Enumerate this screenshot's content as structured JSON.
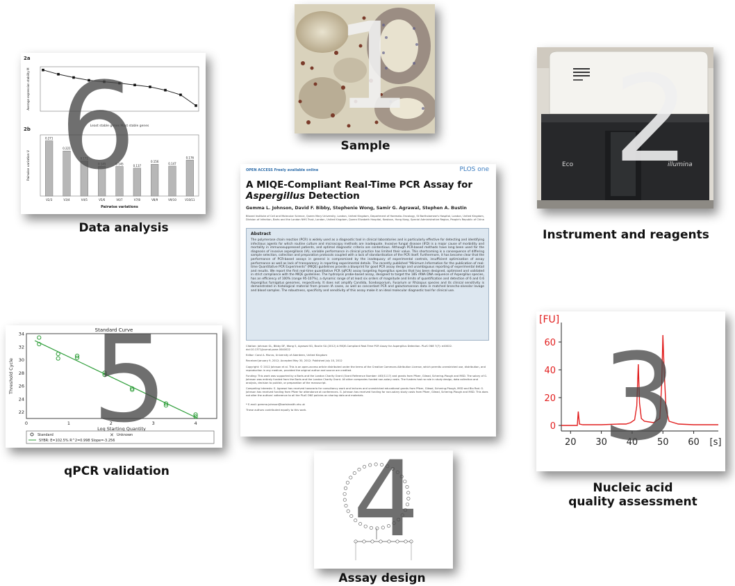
{
  "captions": {
    "sample": "Sample",
    "instrument": "Instrument and reagents",
    "quality_line1": "Nucleic acid",
    "quality_line2": "quality assessment",
    "assay": "Assay design",
    "validation": "qPCR validation",
    "analysis": "Data analysis"
  },
  "step_numbers": [
    "1",
    "2",
    "3",
    "4",
    "5",
    "6"
  ],
  "paper": {
    "open_access": "OPEN ACCESS Freely available online",
    "journal": "PLOS one",
    "title_start": "A MIQE-Compliant Real-Time PCR Assay for ",
    "title_italic": "Aspergillus",
    "title_end": " Detection",
    "authors": "Gemma L. Johnson, David F. Bibby, Stephenie Wong, Samir G. Agrawal, Stephen A. Bustin",
    "affiliations": "Blizard Institute of Cell and Molecular Science, Queen Mary University, London, United Kingdom, Department of Haemato-Oncology, St Bartholomew's Hospital, London, United Kingdom, Division of Infection, Barts and the London NHS Trust, London, United Kingdom, Queen Elizabeth Hospital, Kowloon, Hong Kong, Special Administrative Region, People's Republic of China",
    "abstract_heading": "Abstract",
    "abstract_text": "The polymerase chain reaction (PCR) is widely used as a diagnostic tool in clinical laboratories and is particularly effective for detecting and identifying infectious agents for which routine culture and microscopy methods are inadequate. Invasive fungal disease (IFD) is a major cause of morbidity and mortality in immunosuppressed patients, and optimal diagnostic criteria are contentious. Although PCR-based methods have long been used for the diagnosis of invasive aspergillosis (IA), variable performance in clinical practice has limited their value. This shortcoming is a consequence of differing sample selection, collection and preparation protocols coupled with a lack of standardisation of the PCR itself. Furthermore, it has become clear that the performance of PCR-based assays in general is compromised by the inadequacy of experimental controls, insufficient optimisation of assay performance as well as lack of transparency in reporting experimental details. The recently published \"Minimum Information for the publication of real-time Quantitative PCR Experiments\" (MIQE) guidelines provide a blueprint for good PCR assay design and unambiguous reporting of experimental detail and results. We report the first real-time quantitative PCR (qPCR) assay targeting Aspergillus species that has been designed, optimised and validated in strict compliance with the MIQE guidelines. The hydrolysis probe-based assay, designed to target the 18S rRNA DNA sequence of Aspergillus species, has an efficiency of 100% (range 95-107%), a dynamic range of at least six orders of magnitude and limits of quantification and detection of 6 and 0.6 Aspergillus fumigatus genomes, respectively. It does not amplify Candida, Scedosporium, Fusarium or Rhizopus species and its clinical sensitivity is demonstrated in histological material from proven IA cases, as well as concordant PCR and galactomannan data in matched broncho-alveolar lavage and blood samples. The robustness, specificity and sensitivity of this assay make it an ideal molecular diagnostic tool for clinical use.",
    "citation": "Citation: Johnson GL, Bibby DF, Wong S, Agrawal SG, Bustin SA (2012) A MIQE-Compliant Real-Time PCR Assay for Aspergillus Detection. PLoS ONE 7(7): e40022. doi:10.1371/journal.pone.0040022",
    "editor": "Editor: Carol A. Munro, University of Aberdeen, United Kingdom",
    "dates": "Received January 9, 2012; Accepted May 30, 2012; Published July 10, 2012",
    "copyright": "Copyright: © 2012 Johnson et al. This is an open-access article distributed under the terms of the Creative Commons Attribution License, which permits unrestricted use, distribution, and reproduction in any medium, provided the original author and source are credited.",
    "funding": "Funding: This work was supported by a Barts and the London Charity Grant (Grant Reference Number: 463/1117) and grants from Pfizer, Gilead, Schering-Plough and MSD. The salary of G. Johnson was entirely funded from the Barts and the London Charity Grant. All other companies funded non-salary costs. The funders had no role in study design, data collection and analysis, decision to publish, or preparation of the manuscript.",
    "competing": "Competing Interests: S. Agrawal has received honoraria for consultancy work and lectures and unrestricted educational grants from Pfizer, Gilead, Schering-Plough, MSD and Bio Rad. G. Johnson has received funding from Pfizer for attendance at conferences. G. Johnson has received funding for non-salary study costs from Pfizer, Gilead, Schering-Plough and MSD. This does not alter the authors' adherence to all the PLoS ONE policies on sharing data and materials.",
    "email": "* E-mail: gemma.johnson@bartshealth.nhs.uk",
    "footnote": "These authors contributed equally to this work."
  },
  "instrument": {
    "brand_left": "Eco",
    "brand_right": "illumina"
  },
  "chart_data": [
    {
      "type": "line",
      "title": "",
      "xlabel": "",
      "ylabel": "[FU]",
      "xunit": "[s]",
      "x_ticks": [
        20,
        30,
        40,
        50,
        60
      ],
      "y_ticks": [
        0,
        20,
        40,
        60
      ],
      "xlim": [
        17,
        68
      ],
      "ylim": [
        -4,
        70
      ],
      "series": [
        {
          "x": [
            17,
            22.2,
            22.5,
            22.9,
            24,
            30,
            36,
            38,
            39.5,
            40.8,
            41.5,
            42,
            42.4,
            43,
            44,
            47,
            49,
            49.6,
            50,
            50.4,
            51,
            52,
            55,
            60,
            68
          ],
          "y": [
            0,
            0,
            10,
            1,
            0.5,
            0.5,
            1,
            1,
            2,
            4,
            14,
            44,
            16,
            5,
            3,
            2,
            5,
            30,
            65,
            40,
            12,
            3,
            1,
            0.5,
            0.5
          ]
        }
      ]
    },
    {
      "type": "scatter",
      "title": "Standard Curve",
      "xlabel": "Log Starting Quantity",
      "ylabel": "Threshold Cycle",
      "xlim": [
        0,
        4.5
      ],
      "ylim": [
        21,
        34
      ],
      "x_ticks": [
        0,
        1,
        2,
        3,
        4
      ],
      "y_ticks": [
        22,
        24,
        26,
        28,
        30,
        32,
        34
      ],
      "legend": [
        "Standard",
        "Unknown"
      ],
      "fit_label": "SYBR: E=102.5% R^2=0.998 Slope=-3.256",
      "series": [
        {
          "name": "Standard",
          "x": [
            0.3,
            0.3,
            0.75,
            0.75,
            1.2,
            1.2,
            1.85,
            1.85,
            2.5,
            2.5,
            3.3,
            3.3,
            4.0,
            4.0
          ],
          "y": [
            33.4,
            32.4,
            30.9,
            30.2,
            30.6,
            30.3,
            28.0,
            27.7,
            25.6,
            25.4,
            23.3,
            23.0,
            21.6,
            21.3
          ]
        }
      ]
    },
    {
      "type": "line",
      "title": "",
      "ylabel": "Average expression stability M",
      "xlabel": "",
      "annotation": "Least stable genes      Most stable genes",
      "series": [
        {
          "name": "2a",
          "y": [
            1.38,
            1.29,
            1.22,
            1.16,
            1.13,
            1.1,
            1.06,
            1.02,
            0.95,
            0.85,
            0.62
          ]
        }
      ]
    },
    {
      "type": "bar",
      "title": "",
      "xlabel": "Pairwise variations",
      "ylabel": "Pairwise variation V",
      "categories": [
        "V2/3",
        "V3/4",
        "V4/5",
        "V5/6",
        "V6/7",
        "V7/8",
        "V8/9",
        "V9/10",
        "V10/11"
      ],
      "values": [
        0.271,
        0.221,
        0.172,
        0.145,
        0.145,
        0.137,
        0.156,
        0.147,
        0.176
      ],
      "data_labels": [
        "0.271",
        "0.221",
        "0.172",
        "0.145",
        "0.145",
        "0.137",
        "0.156",
        "0.147",
        "0.176"
      ]
    }
  ],
  "colors": {
    "trace_red": "#e11d1d",
    "fit_green": "#2f9e3a",
    "bar_grey": "#b7b7b7",
    "number_grey": "#4a4a4a",
    "abstract_bg": "#dde7f0"
  }
}
